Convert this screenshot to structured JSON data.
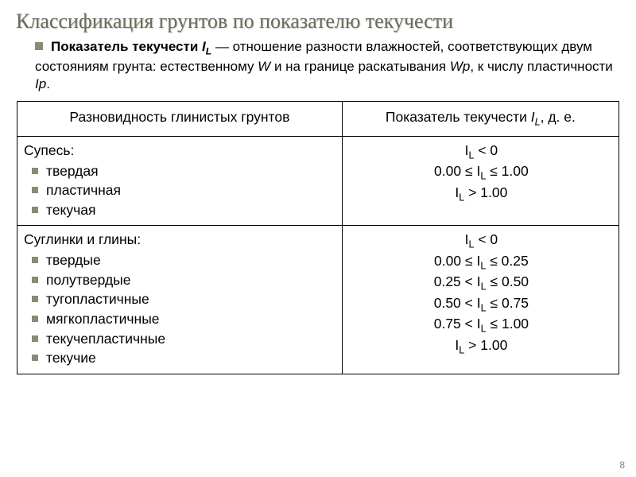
{
  "title": "Классификация грунтов по показателю текучести",
  "intro": {
    "lead_bold": "Показатель текучести ",
    "symbol": "I",
    "symbol_sub": "L",
    "body1": " — отношение разности влажностей, соответствующих двум состояниям грунта: естественному ",
    "w": "W",
    "body2": " и на границе раскатывания ",
    "wp": "Wp",
    "body3": ", к числу пластичности ",
    "ip": "Ip",
    "end": "."
  },
  "headers": {
    "left": "Разновидность глинистых грунтов",
    "right_pre": "Показатель текучести ",
    "right_sym": "I",
    "right_sub": "L",
    "right_post": ", д. е."
  },
  "row1": {
    "head": "Супесь:",
    "items": [
      "твердая",
      "пластичная",
      "текучая"
    ],
    "il": [
      "I|L| < 0",
      "0.00 ≤ I|L| ≤ 1.00",
      "I|L| > 1.00"
    ]
  },
  "row2": {
    "head": "Суглинки и глины:",
    "items": [
      "твердые",
      "полутвердые",
      "тугопластичные",
      "мягкопластичные",
      "текучепластичные",
      "текучие"
    ],
    "il": [
      "I|L| < 0",
      "0.00 ≤ I|L| ≤ 0.25",
      "0.25 < I|L| ≤ 0.50",
      "0.50 < I|L| ≤ 0.75",
      "0.75 < I|L| ≤ 1.00",
      "I|L| > 1.00"
    ]
  },
  "page_number": "8"
}
